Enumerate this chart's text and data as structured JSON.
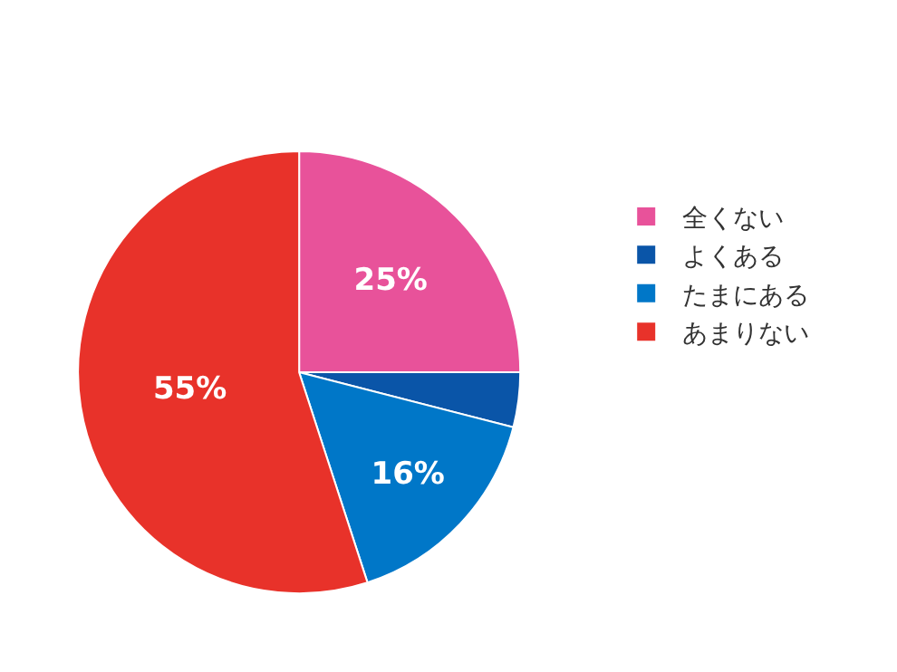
{
  "chart_data": {
    "type": "pie",
    "categories": [
      "全くない",
      "よくある",
      "たまにある",
      "あまりない"
    ],
    "values": [
      25,
      4,
      16,
      55
    ],
    "colors": [
      "#e8529a",
      "#0a55a8",
      "#0077c8",
      "#e8322a"
    ],
    "value_labels": [
      "25%",
      null,
      "16%",
      "55%"
    ],
    "legend": "right"
  }
}
